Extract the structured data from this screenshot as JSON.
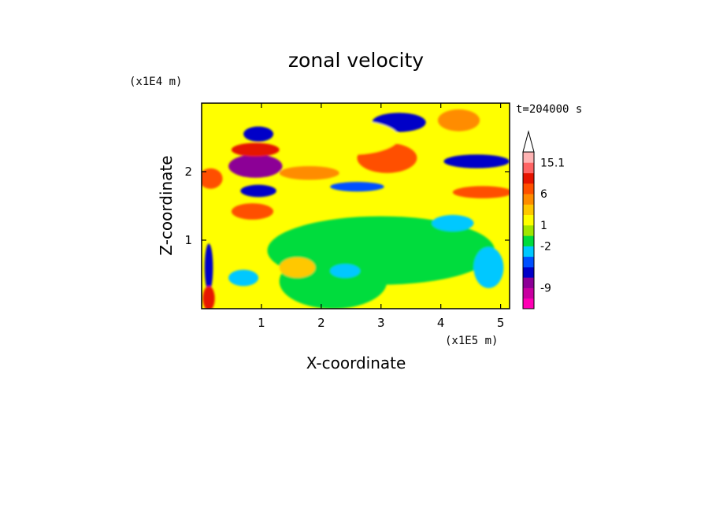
{
  "chart_data": {
    "type": "heatmap",
    "title": "zonal velocity",
    "xlabel": "X-coordinate",
    "ylabel": "Z-coordinate",
    "x_unit": "(x1E5 m)",
    "y_unit": "(x1E4 m)",
    "time_label": "t=204000 s",
    "xlim": [
      0,
      5.15
    ],
    "ylim": [
      0,
      3.0
    ],
    "x_ticks": [
      1,
      2,
      3,
      4,
      5
    ],
    "y_ticks": [
      1,
      2
    ],
    "colorbar": {
      "colors": [
        "#ff00b4",
        "#c800a0",
        "#8c0096",
        "#0000c8",
        "#0050ff",
        "#00c8ff",
        "#00dc3c",
        "#a0e600",
        "#ffff00",
        "#ffc800",
        "#ff8c00",
        "#ff5000",
        "#e61400",
        "#ff6464",
        "#ffb4b4"
      ],
      "tick_labels": [
        {
          "label": "15.1",
          "after_band": 14
        },
        {
          "label": "6",
          "after_band": 11
        },
        {
          "label": "1",
          "after_band": 8
        },
        {
          "label": "-2",
          "after_band": 6
        },
        {
          "label": "-9",
          "after_band": 2
        }
      ],
      "extend_max": true
    },
    "features": [
      {
        "x": 0.9,
        "z": 2.08,
        "value": -10,
        "rx": 0.45,
        "rz": 0.17
      },
      {
        "x": 0.95,
        "z": 1.72,
        "value": -8,
        "rx": 0.3,
        "rz": 0.09
      },
      {
        "x": 0.95,
        "z": 2.55,
        "value": -7,
        "rx": 0.25,
        "rz": 0.11
      },
      {
        "x": 3.3,
        "z": 2.72,
        "value": -8,
        "rx": 0.45,
        "rz": 0.14
      },
      {
        "x": 4.6,
        "z": 2.15,
        "value": -8,
        "rx": 0.55,
        "rz": 0.1
      },
      {
        "x": 0.12,
        "z": 0.6,
        "value": -7,
        "rx": 0.07,
        "rz": 0.35
      },
      {
        "x": 2.6,
        "z": 1.78,
        "value": -5,
        "rx": 0.45,
        "rz": 0.07
      },
      {
        "x": 3.1,
        "z": 2.2,
        "value": 8,
        "rx": 0.5,
        "rz": 0.22
      },
      {
        "x": 0.9,
        "z": 2.32,
        "value": 9,
        "rx": 0.4,
        "rz": 0.1
      },
      {
        "x": 0.85,
        "z": 1.42,
        "value": 7,
        "rx": 0.35,
        "rz": 0.12
      },
      {
        "x": 0.15,
        "z": 1.9,
        "value": 7,
        "rx": 0.2,
        "rz": 0.15
      },
      {
        "x": 0.12,
        "z": 0.15,
        "value": 9,
        "rx": 0.1,
        "rz": 0.18
      },
      {
        "x": 4.7,
        "z": 1.7,
        "value": 6,
        "rx": 0.5,
        "rz": 0.09
      },
      {
        "x": 4.3,
        "z": 2.75,
        "value": 5,
        "rx": 0.35,
        "rz": 0.16
      },
      {
        "x": 1.8,
        "z": 1.98,
        "value": 4,
        "rx": 0.5,
        "rz": 0.1
      },
      {
        "x": 3.0,
        "z": 0.85,
        "value": -1,
        "rx": 1.9,
        "rz": 0.5
      },
      {
        "x": 2.2,
        "z": 0.4,
        "value": -1,
        "rx": 0.9,
        "rz": 0.4
      },
      {
        "x": 4.2,
        "z": 1.25,
        "value": -3,
        "rx": 0.35,
        "rz": 0.12
      },
      {
        "x": 0.7,
        "z": 0.45,
        "value": -3,
        "rx": 0.25,
        "rz": 0.12
      },
      {
        "x": 2.4,
        "z": 0.55,
        "value": -4,
        "rx": 0.25,
        "rz": 0.1
      },
      {
        "x": 4.8,
        "z": 0.6,
        "value": -3,
        "rx": 0.25,
        "rz": 0.3
      },
      {
        "x": 2.5,
        "z": 2.5,
        "value": 1,
        "rx": 0.8,
        "rz": 0.25
      },
      {
        "x": 1.6,
        "z": 0.6,
        "value": 2,
        "rx": 0.3,
        "rz": 0.15
      }
    ]
  }
}
